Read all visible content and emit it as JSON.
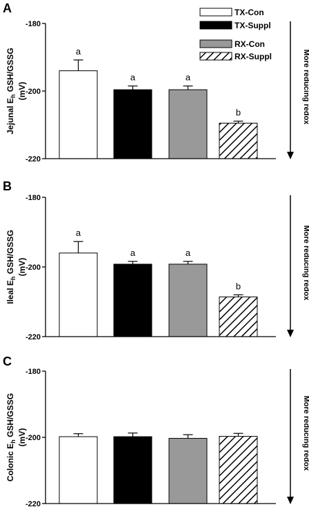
{
  "legend": [
    {
      "label": "TX-Con",
      "fill": "#ffffff"
    },
    {
      "label": "TX-Suppl",
      "fill": "#000000"
    },
    {
      "label": "RX-Con",
      "fill": "#999999"
    },
    {
      "label": "RX-Suppl",
      "fill": "hatch"
    }
  ],
  "arrow_label": "More reducing redox",
  "chart_data": [
    {
      "type": "bar",
      "panel": "A",
      "ylabel_prefix": "Jejunal E",
      "ylabel_sub": "h",
      "ylabel_suffix": " GSH/GSSG",
      "yunit": "(mV)",
      "ylim": [
        -180,
        -220
      ],
      "yticks": [
        "-180",
        "-200",
        "-220"
      ],
      "series": [
        {
          "name": "TX-Con",
          "value": -194,
          "error": 3.2,
          "letter": "a"
        },
        {
          "name": "TX-Suppl",
          "value": -199.6,
          "error": 1.1,
          "letter": "a"
        },
        {
          "name": "RX-Con",
          "value": -199.6,
          "error": 1.1,
          "letter": "a"
        },
        {
          "name": "RX-Suppl",
          "value": -209.5,
          "error": 0.6,
          "letter": "b"
        }
      ]
    },
    {
      "type": "bar",
      "panel": "B",
      "ylabel_prefix": "Ileal E",
      "ylabel_sub": "h",
      "ylabel_suffix": " GSH/GSSG",
      "yunit": "(mV)",
      "ylim": [
        -180,
        -220
      ],
      "yticks": [
        "-180",
        "-200",
        "-220"
      ],
      "series": [
        {
          "name": "TX-Con",
          "value": -196,
          "error": 3.3,
          "letter": "a"
        },
        {
          "name": "TX-Suppl",
          "value": -199.2,
          "error": 0.8,
          "letter": "a"
        },
        {
          "name": "RX-Con",
          "value": -199.2,
          "error": 0.8,
          "letter": "a"
        },
        {
          "name": "RX-Suppl",
          "value": -208.6,
          "error": 0.6,
          "letter": "b"
        }
      ]
    },
    {
      "type": "bar",
      "panel": "C",
      "ylabel_prefix": "Colonic E",
      "ylabel_sub": "h",
      "ylabel_suffix": " GSH/GSSG",
      "yunit": "(mV)",
      "ylim": [
        -180,
        -220
      ],
      "yticks": [
        "-180",
        "-200",
        "-220"
      ],
      "series": [
        {
          "name": "TX-Con",
          "value": -199.8,
          "error": 0.9,
          "letter": ""
        },
        {
          "name": "TX-Suppl",
          "value": -199.8,
          "error": 1.1,
          "letter": ""
        },
        {
          "name": "RX-Con",
          "value": -200.3,
          "error": 1.1,
          "letter": ""
        },
        {
          "name": "RX-Suppl",
          "value": -199.7,
          "error": 0.9,
          "letter": ""
        }
      ]
    }
  ]
}
